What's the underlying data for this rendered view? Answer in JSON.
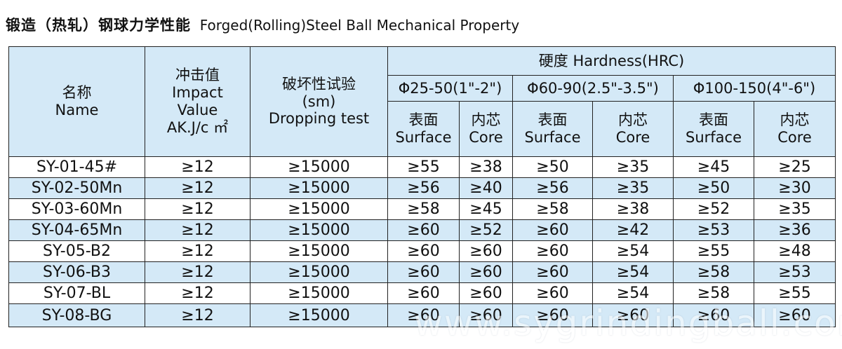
{
  "title": {
    "cn": "锻造（热轧）钢球力学性能",
    "en": "Forged(Rolling)Steel Ball Mechanical Property"
  },
  "headers": {
    "name": {
      "cn": "名称",
      "en": "Name"
    },
    "impact": {
      "cn": "冲击值",
      "en1": "Impact",
      "en2": "Value",
      "unit": "AK.J/c ㎡"
    },
    "drop": {
      "cn": "破坏性试验",
      "unit": "(sm)",
      "en": "Dropping test"
    },
    "hardness": "硬度  Hardness(HRC)",
    "groups": [
      "Φ25-50(1\"-2\")",
      "Φ60-90(2.5\"-3.5\")",
      "Φ100-150(4\"-6\")"
    ],
    "surface": {
      "cn": "表面",
      "en": "Surface"
    },
    "core": {
      "cn": "内芯",
      "en": "Core"
    }
  },
  "rows": [
    {
      "name": "SY-01-45#",
      "impact": "≥12",
      "drop": "≥15000",
      "s1": "≥55",
      "c1": "≥38",
      "s2": "≥50",
      "c2": "≥35",
      "s3": "≥45",
      "c3": "≥25"
    },
    {
      "name": "SY-02-50Mn",
      "impact": "≥12",
      "drop": "≥15000",
      "s1": "≥56",
      "c1": "≥40",
      "s2": "≥56",
      "c2": "≥35",
      "s3": "≥50",
      "c3": "≥30"
    },
    {
      "name": "SY-03-60Mn",
      "impact": "≥12",
      "drop": "≥15000",
      "s1": "≥58",
      "c1": "≥45",
      "s2": "≥58",
      "c2": "≥38",
      "s3": "≥52",
      "c3": "≥35"
    },
    {
      "name": "SY-04-65Mn",
      "impact": "≥12",
      "drop": "≥15000",
      "s1": "≥60",
      "c1": "≥52",
      "s2": "≥60",
      "c2": "≥42",
      "s3": "≥53",
      "c3": "≥36"
    },
    {
      "name": "SY-05-B2",
      "impact": "≥12",
      "drop": "≥15000",
      "s1": "≥60",
      "c1": "≥60",
      "s2": "≥60",
      "c2": "≥54",
      "s3": "≥55",
      "c3": "≥48"
    },
    {
      "name": "SY-06-B3",
      "impact": "≥12",
      "drop": "≥15000",
      "s1": "≥60",
      "c1": "≥60",
      "s2": "≥60",
      "c2": "≥54",
      "s3": "≥58",
      "c3": "≥53"
    },
    {
      "name": "SY-07-BL",
      "impact": "≥12",
      "drop": "≥15000",
      "s1": "≥60",
      "c1": "≥60",
      "s2": "≥60",
      "c2": "≥54",
      "s3": "≥58",
      "c3": "≥55"
    },
    {
      "name": "SY-08-BG",
      "impact": "≥12",
      "drop": "≥15000",
      "s1": "≥60",
      "c1": "≥60",
      "s2": "≥60",
      "c2": "≥60",
      "s3": "≥60",
      "c3": "≥60"
    }
  ],
  "watermark": "www.sygrindingball.com"
}
